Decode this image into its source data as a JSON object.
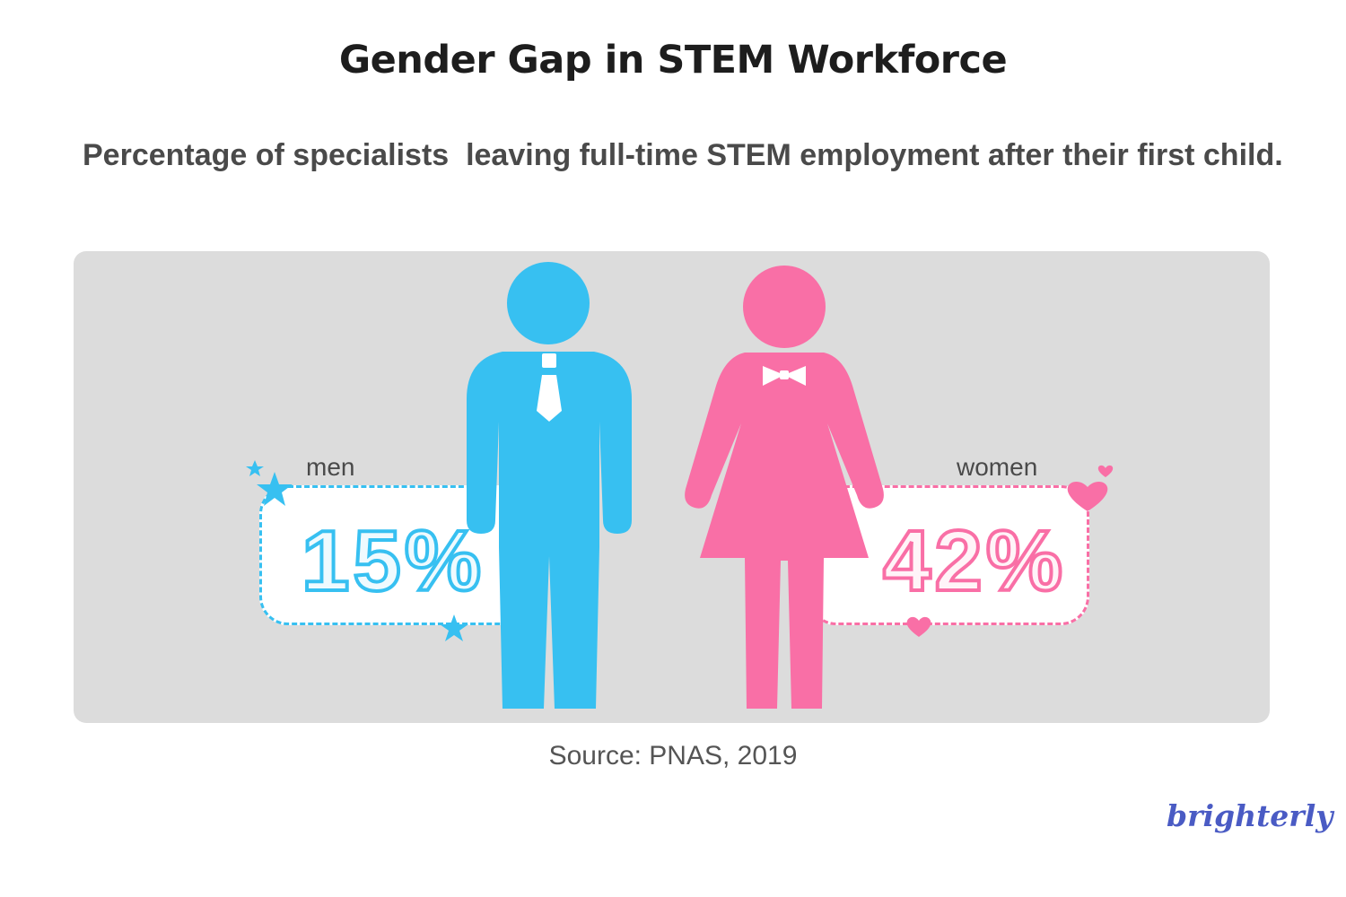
{
  "title": "Gender Gap in STEM Workforce",
  "subtitle": "Percentage of specialists  leaving full-time STEM employment after their first child.",
  "source": "Source: PNAS, 2019",
  "brand": "brighterly",
  "colors": {
    "men": "#37c0f1",
    "women": "#f96fa6",
    "panel": "#dcdcdc",
    "brand": "#4a5bc4"
  },
  "chart_data": {
    "type": "bar",
    "categories": [
      "men",
      "women"
    ],
    "values": [
      15,
      42
    ],
    "value_labels": [
      "15%",
      "42%"
    ],
    "unit": "%",
    "title": "Gender Gap in STEM Workforce",
    "subtitle": "Percentage of specialists  leaving full-time STEM employment after their first child.",
    "source": "Source: PNAS, 2019"
  }
}
